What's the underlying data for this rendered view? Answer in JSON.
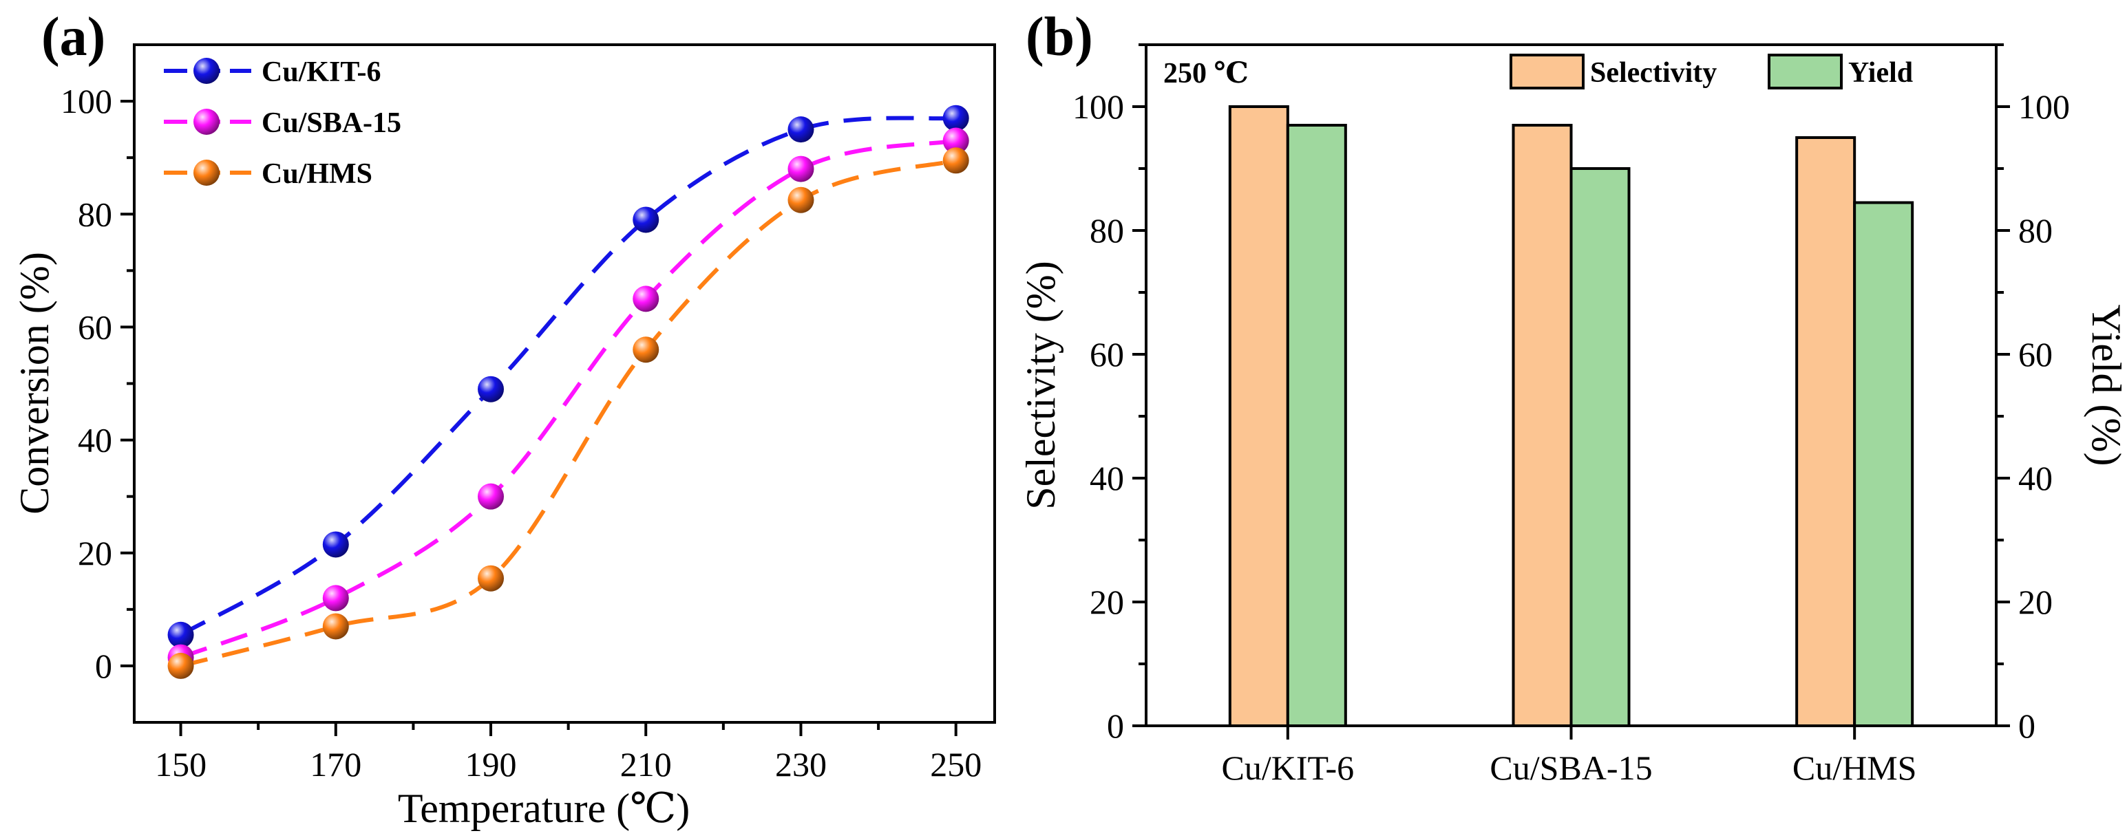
{
  "chart_data": [
    {
      "type": "line",
      "panel_label": "(a)",
      "xlabel": "Temperature (℃)",
      "ylabel": "Conversion (%)",
      "x": [
        150,
        170,
        190,
        210,
        230,
        250
      ],
      "x_tick_labels": [
        "150",
        "170",
        "190",
        "210",
        "230",
        "250"
      ],
      "xlim": [
        144,
        255
      ],
      "ylim": [
        -10,
        110
      ],
      "y_ticks": [
        0,
        20,
        40,
        60,
        80,
        100
      ],
      "y_tick_labels": [
        "0",
        "20",
        "40",
        "60",
        "80",
        "100"
      ],
      "legend_position": "top-left",
      "series": [
        {
          "name": "Cu/KIT-6",
          "values": [
            5.5,
            21.5,
            49,
            79,
            95,
            97
          ],
          "color": "#1414e6"
        },
        {
          "name": "Cu/SBA-15",
          "values": [
            1.5,
            12,
            30,
            65,
            88,
            93
          ],
          "color": "#ff14ff"
        },
        {
          "name": "Cu/HMS",
          "values": [
            0,
            7,
            15.5,
            56,
            82.5,
            89.5
          ],
          "color": "#ff8014"
        }
      ]
    },
    {
      "type": "bar",
      "panel_label": "(b)",
      "annotation": "250 ℃",
      "categories": [
        "Cu/KIT-6",
        "Cu/SBA-15",
        "Cu/HMS"
      ],
      "ylabel": "Selectivity (%)",
      "y2label": "Yield (%)",
      "ylim": [
        0,
        110
      ],
      "y_ticks": [
        0,
        20,
        40,
        60,
        80,
        100
      ],
      "y_tick_labels": [
        "0",
        "20",
        "40",
        "60",
        "80",
        "100"
      ],
      "legend_position": "top-right",
      "series": [
        {
          "name": "Selectivity",
          "axis": "left",
          "values": [
            100,
            97,
            95
          ],
          "color": "#fcc592"
        },
        {
          "name": "Yield",
          "axis": "right",
          "values": [
            97,
            90,
            84.5
          ],
          "color": "#9fd89e"
        }
      ]
    }
  ]
}
